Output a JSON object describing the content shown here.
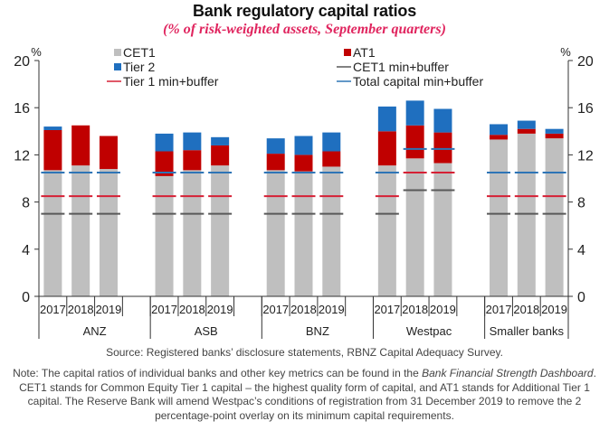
{
  "chart_data": {
    "type": "bar",
    "stacked": true,
    "title": "Bank regulatory capital ratios",
    "subtitle": "(% of risk-weighted assets, September quarters)",
    "ylabel_left": "%",
    "ylabel_right": "%",
    "ylim": [
      0,
      20
    ],
    "yticks": [
      0,
      4,
      8,
      12,
      16,
      20
    ],
    "grid": false,
    "legend_position": "top",
    "groups": [
      {
        "name": "ANZ",
        "years": [
          "2017",
          "2018",
          "2019"
        ]
      },
      {
        "name": "ASB",
        "years": [
          "2017",
          "2018",
          "2019"
        ]
      },
      {
        "name": "BNZ",
        "years": [
          "2017",
          "2018",
          "2019"
        ]
      },
      {
        "name": "Westpac",
        "years": [
          "2017",
          "2018",
          "2019"
        ]
      },
      {
        "name": "Smaller banks",
        "years": [
          "2017",
          "2018",
          "2019"
        ]
      }
    ],
    "categories": [
      "ANZ 2017",
      "ANZ 2018",
      "ANZ 2019",
      "ASB 2017",
      "ASB 2018",
      "ASB 2019",
      "BNZ 2017",
      "BNZ 2018",
      "BNZ 2019",
      "Westpac 2017",
      "Westpac 2018",
      "Westpac 2019",
      "Smaller banks 2017",
      "Smaller banks 2018",
      "Smaller banks 2019"
    ],
    "series": [
      {
        "name": "CET1",
        "kind": "bar",
        "color": "#bfbfbf",
        "values": [
          10.7,
          11.1,
          10.8,
          10.2,
          10.7,
          11.1,
          10.7,
          10.6,
          11.0,
          11.1,
          11.7,
          11.3,
          13.3,
          13.8,
          13.4
        ]
      },
      {
        "name": "AT1",
        "kind": "bar",
        "color": "#c00000",
        "values": [
          3.4,
          3.4,
          2.8,
          2.1,
          1.7,
          1.7,
          1.4,
          1.4,
          1.3,
          2.9,
          2.8,
          2.6,
          0.4,
          0.4,
          0.4
        ]
      },
      {
        "name": "Tier 2",
        "kind": "bar",
        "color": "#1f6fbf",
        "values": [
          0.3,
          0.0,
          0.0,
          1.5,
          1.5,
          0.7,
          1.3,
          1.6,
          1.6,
          2.1,
          2.1,
          2.0,
          0.9,
          0.7,
          0.4
        ]
      },
      {
        "name": "CET1 min+buffer",
        "kind": "marker",
        "color": "#595959",
        "values": [
          7.0,
          7.0,
          7.0,
          7.0,
          7.0,
          7.0,
          7.0,
          7.0,
          7.0,
          7.0,
          9.0,
          9.0,
          7.0,
          7.0,
          7.0
        ]
      },
      {
        "name": "Tier 1 min+buffer",
        "kind": "marker",
        "color": "#d62035",
        "values": [
          8.5,
          8.5,
          8.5,
          8.5,
          8.5,
          8.5,
          8.5,
          8.5,
          8.5,
          8.5,
          10.5,
          10.5,
          8.5,
          8.5,
          8.5
        ]
      },
      {
        "name": "Total capital min+buffer",
        "kind": "marker",
        "color": "#2e75b6",
        "values": [
          10.5,
          10.5,
          10.5,
          10.5,
          10.5,
          10.5,
          10.5,
          10.5,
          10.5,
          10.5,
          12.5,
          12.5,
          10.5,
          10.5,
          10.5
        ]
      }
    ],
    "legend": [
      {
        "label": "CET1",
        "kind": "box",
        "color": "#bfbfbf"
      },
      {
        "label": "AT1",
        "kind": "box",
        "color": "#c00000"
      },
      {
        "label": "Tier 2",
        "kind": "box",
        "color": "#1f6fbf"
      },
      {
        "label": "CET1 min+buffer",
        "kind": "line",
        "color": "#595959"
      },
      {
        "label": "Tier 1 min+buffer",
        "kind": "line",
        "color": "#d62035"
      },
      {
        "label": "Total capital min+buffer",
        "kind": "line",
        "color": "#2e75b6"
      }
    ]
  },
  "footer": {
    "source": "Source: Registered banks’ disclosure statements, RBNZ Capital Adequacy Survey.",
    "note_parts": [
      {
        "text": "Note: The capital ratios of individual banks and other key metrics can be found in the ",
        "italic": false
      },
      {
        "text": "Bank Financial Strength Dashboard",
        "italic": true
      },
      {
        "text": ". CET1 stands for Common Equity Tier 1 capital – the highest quality form of capital, and AT1 stands for Additional Tier 1 capital. The Reserve Bank will amend Westpac’s conditions of registration from 31 December 2019 to remove the 2 percentage-point overlay on its minimum capital requirements.",
        "italic": false
      }
    ]
  }
}
